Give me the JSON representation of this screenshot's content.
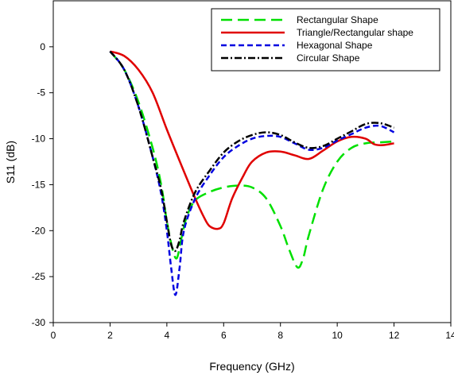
{
  "chart_data": {
    "type": "line",
    "xlabel": "Frequency (GHz)",
    "ylabel": "S11 (dB)",
    "xlim": [
      0,
      14
    ],
    "ylim": [
      -30,
      5
    ],
    "xticks": [
      0,
      2,
      4,
      6,
      8,
      10,
      12,
      14
    ],
    "yticks": [
      0,
      -5,
      -10,
      -15,
      -20,
      -25,
      -30
    ],
    "xtick_labels": [
      "0",
      "2",
      "4",
      "6",
      "8",
      "10",
      "12",
      "14"
    ],
    "ytick_labels": [
      "0",
      "-5",
      "-10",
      "-15",
      "-20",
      "-25",
      "-30"
    ],
    "grid": false,
    "legend_position": "top-right",
    "series": [
      {
        "name": "Rectangular Shape",
        "color": "#00e000",
        "dash": "long-dash",
        "x": [
          2,
          2.5,
          3,
          3.5,
          3.8,
          4.0,
          4.2,
          4.35,
          4.5,
          4.7,
          5.0,
          5.5,
          6.0,
          6.5,
          7.0,
          7.5,
          8.0,
          8.3,
          8.6,
          8.8,
          9.0,
          9.5,
          10.0,
          10.5,
          11.0,
          11.5,
          12.0
        ],
        "y": [
          -0.5,
          -2.5,
          -6,
          -11,
          -15,
          -19,
          -22,
          -23,
          -21,
          -18.5,
          -16.7,
          -15.8,
          -15.3,
          -15.1,
          -15.3,
          -16.5,
          -19.5,
          -22,
          -24,
          -23,
          -20.5,
          -15.5,
          -12.5,
          -11,
          -10.5,
          -10.4,
          -10.3
        ]
      },
      {
        "name": "Triangle/Rectangular shape",
        "color": "#e00000",
        "dash": "solid",
        "x": [
          2,
          2.5,
          3,
          3.5,
          4.0,
          4.5,
          5.0,
          5.3,
          5.5,
          5.8,
          6.0,
          6.3,
          6.7,
          7.0,
          7.5,
          8.0,
          8.5,
          9.0,
          9.5,
          10.0,
          10.5,
          11.0,
          11.3,
          11.6,
          12.0
        ],
        "y": [
          -0.5,
          -1.0,
          -2.5,
          -5.0,
          -9.0,
          -12.8,
          -16.5,
          -18.5,
          -19.5,
          -19.8,
          -19.2,
          -16.5,
          -14.0,
          -12.5,
          -11.5,
          -11.4,
          -11.8,
          -12.2,
          -11.3,
          -10.3,
          -9.8,
          -10.0,
          -10.6,
          -10.7,
          -10.5
        ]
      },
      {
        "name": "Hexagonal Shape",
        "color": "#0000e0",
        "dash": "short-dash",
        "x": [
          2,
          2.5,
          3,
          3.5,
          3.8,
          4.0,
          4.15,
          4.3,
          4.45,
          4.6,
          5.0,
          5.5,
          6.0,
          6.5,
          7.0,
          7.5,
          8.0,
          8.5,
          9.0,
          9.5,
          10.0,
          10.5,
          11.0,
          11.5,
          12.0
        ],
        "y": [
          -0.5,
          -2.5,
          -6.5,
          -12,
          -16,
          -20,
          -24,
          -27,
          -24,
          -20,
          -16.5,
          -14,
          -12,
          -10.8,
          -10.0,
          -9.7,
          -9.8,
          -10.5,
          -11.2,
          -11.0,
          -10.2,
          -9.5,
          -8.8,
          -8.6,
          -9.3
        ]
      },
      {
        "name": "Circular Shape",
        "color": "#000000",
        "dash": "dash-dot",
        "x": [
          2,
          2.5,
          3,
          3.5,
          3.8,
          4.0,
          4.15,
          4.3,
          4.45,
          4.6,
          5.0,
          5.5,
          6.0,
          6.5,
          7.0,
          7.5,
          8.0,
          8.5,
          9.0,
          9.5,
          10.0,
          10.5,
          11.0,
          11.5,
          12.0
        ],
        "y": [
          -0.5,
          -2.5,
          -6.5,
          -12,
          -15.5,
          -19,
          -21.5,
          -22.2,
          -21,
          -19,
          -15.8,
          -13.5,
          -11.5,
          -10.3,
          -9.6,
          -9.3,
          -9.6,
          -10.4,
          -11.0,
          -10.8,
          -10.0,
          -9.2,
          -8.4,
          -8.3,
          -8.8
        ]
      }
    ]
  }
}
